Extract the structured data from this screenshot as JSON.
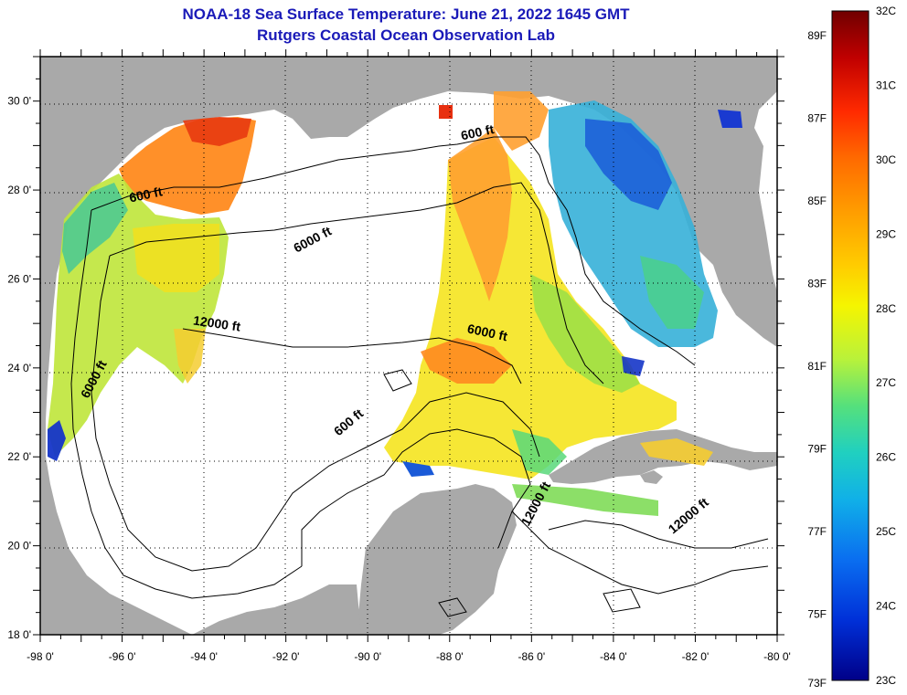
{
  "title": {
    "line1": "NOAA-18 Sea Surface Temperature:  June 21, 2022 1645 GMT",
    "line2": "Rutgers Coastal Ocean Observation Lab"
  },
  "map": {
    "region": "Gulf of Mexico",
    "lon_range": [
      -98,
      -80
    ],
    "lat_range": [
      18,
      31
    ],
    "lon_ticks": [
      "-98 0'",
      "-96 0'",
      "-94 0'",
      "-92 0'",
      "-90 0'",
      "-88 0'",
      "-86 0'",
      "-84 0'",
      "-82 0'",
      "-80 0'"
    ],
    "lat_ticks": [
      "30 0'",
      "28 0'",
      "26 0'",
      "24 0'",
      "22 0'",
      "20 0'",
      "18 0'"
    ],
    "contour_labels": [
      {
        "text": "600 ft",
        "lon": -95.4,
        "lat": 27.8,
        "angle": -12
      },
      {
        "text": "600 ft",
        "lon": -87.3,
        "lat": 29.2,
        "angle": -12
      },
      {
        "text": "6000 ft",
        "lon": -91.3,
        "lat": 26.8,
        "angle": -28
      },
      {
        "text": "12000 ft",
        "lon": -93.7,
        "lat": 24.9,
        "angle": 8
      },
      {
        "text": "6000 ft",
        "lon": -96.6,
        "lat": 23.7,
        "angle": -62
      },
      {
        "text": "6000 ft",
        "lon": -87.1,
        "lat": 24.7,
        "angle": 12
      },
      {
        "text": "600 ft",
        "lon": -90.4,
        "lat": 22.7,
        "angle": -40
      },
      {
        "text": "12000 ft",
        "lon": -85.8,
        "lat": 20.9,
        "angle": -62
      },
      {
        "text": "12000 ft",
        "lon": -82.1,
        "lat": 20.6,
        "angle": -40
      }
    ],
    "colors": {
      "land": "#a9a9a9",
      "ocean": "#ffffff",
      "grid": "#000000"
    }
  },
  "colorbar": {
    "labels_c": [
      "32C",
      "31C",
      "30C",
      "29C",
      "28C",
      "27C",
      "26C",
      "25C",
      "24C",
      "23C"
    ],
    "labels_f": [
      "89F",
      "87F",
      "85F",
      "83F",
      "81F",
      "79F",
      "77F",
      "75F",
      "73F"
    ],
    "range_c": [
      23,
      32
    ],
    "range_f": [
      73.4,
      89.6
    ],
    "colors": [
      "#8b0000",
      "#d40000",
      "#ff2a00",
      "#ff6a00",
      "#ff9d00",
      "#ffcc00",
      "#f5f500",
      "#b9f23a",
      "#55e07c",
      "#20d0c0",
      "#10b0e8",
      "#0a6ef0",
      "#0030d8",
      "#000088"
    ]
  }
}
